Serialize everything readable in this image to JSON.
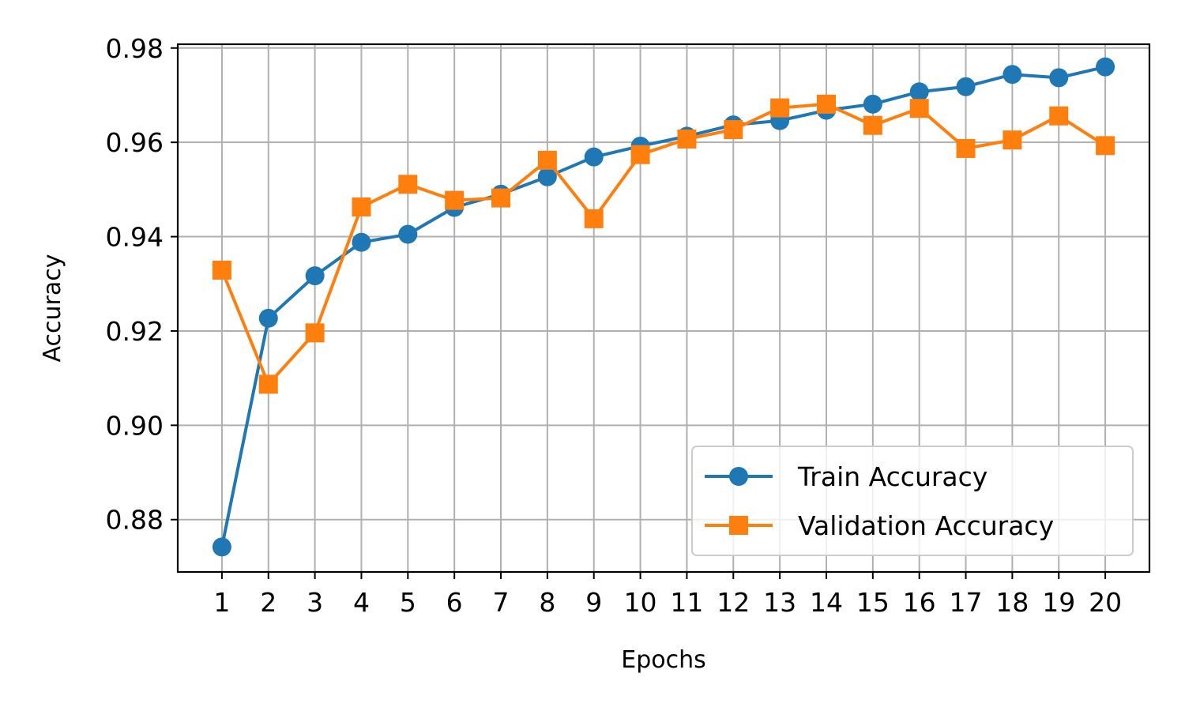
{
  "chart_data": {
    "type": "line",
    "title": "",
    "xlabel": "Epochs",
    "ylabel": "Accuracy",
    "x": [
      1,
      2,
      3,
      4,
      5,
      6,
      7,
      8,
      9,
      10,
      11,
      12,
      13,
      14,
      15,
      16,
      17,
      18,
      19,
      20
    ],
    "xticks": [
      "1",
      "2",
      "3",
      "4",
      "5",
      "6",
      "7",
      "8",
      "9",
      "10",
      "11",
      "12",
      "13",
      "14",
      "15",
      "16",
      "17",
      "18",
      "19",
      "20"
    ],
    "yticks": [
      "0.88",
      "0.90",
      "0.92",
      "0.94",
      "0.96",
      "0.98"
    ],
    "xlim": [
      0.05,
      20.95
    ],
    "ylim": [
      0.8689,
      0.9808
    ],
    "grid": true,
    "legend_position": "lower-right",
    "series": [
      {
        "name": "Train Accuracy",
        "color": "#1f77b4",
        "marker": "circle",
        "values": [
          0.8742,
          0.9227,
          0.9317,
          0.9388,
          0.9405,
          0.9462,
          0.949,
          0.9527,
          0.9569,
          0.9592,
          0.9613,
          0.9637,
          0.9646,
          0.9668,
          0.9681,
          0.9707,
          0.9718,
          0.9744,
          0.9737,
          0.976
        ]
      },
      {
        "name": "Validation Accuracy",
        "color": "#ff7f0e",
        "marker": "square",
        "values": [
          0.9329,
          0.9087,
          0.9196,
          0.9463,
          0.9511,
          0.9477,
          0.9482,
          0.9562,
          0.9438,
          0.9574,
          0.9607,
          0.9627,
          0.9673,
          0.9681,
          0.9636,
          0.9672,
          0.9587,
          0.9605,
          0.9656,
          0.9593
        ]
      }
    ]
  }
}
